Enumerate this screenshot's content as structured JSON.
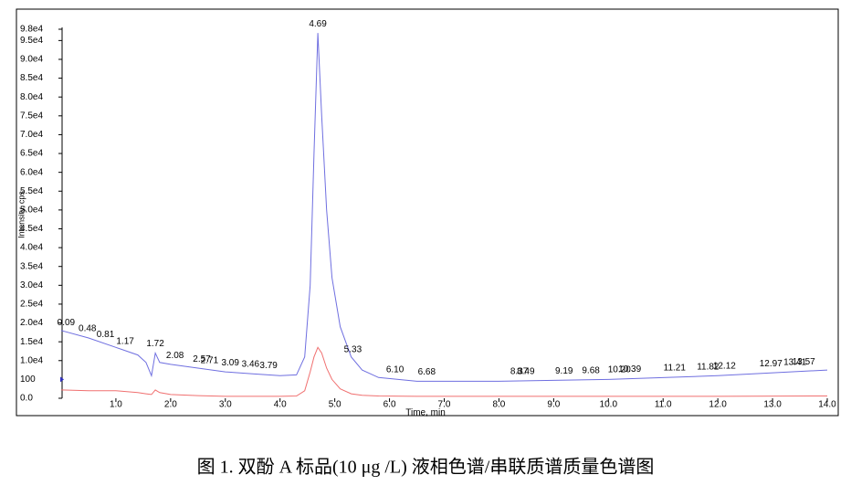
{
  "chart_data": {
    "type": "line",
    "caption": "图 1.  双酚 A 标品(10 μg /L)  液相色谱/串联质谱质量色谱图",
    "x_label": "Time, min",
    "y_label": "Intensity, cps",
    "reference_label": "100",
    "x": [
      0,
      0.5,
      1.0,
      1.4,
      1.55,
      1.65,
      1.72,
      1.8,
      2.0,
      2.5,
      3.0,
      3.5,
      4.0,
      4.3,
      4.45,
      4.55,
      4.62,
      4.69,
      4.76,
      4.85,
      4.95,
      5.1,
      5.3,
      5.5,
      5.8,
      6.5,
      8,
      10,
      12,
      14
    ],
    "series": [
      {
        "color": "#6f6fe0",
        "values": [
          18000,
          16000,
          13500,
          11500,
          9500,
          6000,
          12000,
          9500,
          9000,
          8000,
          7000,
          6500,
          6000,
          6200,
          11000,
          30000,
          65000,
          97000,
          75000,
          50000,
          32000,
          19000,
          11000,
          7500,
          5500,
          4500,
          4500,
          5000,
          6000,
          7500
        ]
      },
      {
        "color": "#f07070",
        "values": [
          2200,
          2000,
          2000,
          1500,
          1200,
          1000,
          2200,
          1500,
          1000,
          700,
          500,
          500,
          500,
          600,
          2000,
          7000,
          11000,
          13500,
          12000,
          8000,
          5000,
          2500,
          1200,
          800,
          600,
          500,
          500,
          500,
          500,
          600
        ]
      }
    ],
    "peaks": [
      0.09,
      0.48,
      0.81,
      1.17,
      1.72,
      2.08,
      2.57,
      2.71,
      3.09,
      3.46,
      3.79,
      4.69,
      5.33,
      {
        "value": 6.1,
        "label": "6.10"
      },
      6.68,
      8.37,
      8.49,
      9.19,
      9.68,
      {
        "value": 10.2,
        "label": "10.20"
      },
      10.39,
      11.21,
      11.82,
      12.12,
      12.97,
      13.41,
      13.57
    ],
    "xlim": [
      0,
      14
    ],
    "xticks": [
      {
        "value": 1,
        "label": "1.0"
      },
      {
        "value": 2,
        "label": "2.0"
      },
      {
        "value": 3,
        "label": "3.0"
      },
      {
        "value": 4,
        "label": "4.0"
      },
      {
        "value": 5,
        "label": "5.0"
      },
      {
        "value": 6,
        "label": "6.0"
      },
      {
        "value": 7,
        "label": "7.0"
      },
      {
        "value": 8,
        "label": "8.0"
      },
      {
        "value": 9,
        "label": "9.0"
      },
      {
        "value": 10,
        "label": "10.0"
      },
      {
        "value": 11,
        "label": "11.0"
      },
      {
        "value": 12,
        "label": "12.0"
      },
      {
        "value": 13,
        "label": "13.0"
      },
      {
        "value": 14,
        "label": "14.0"
      }
    ],
    "ylim": [
      0,
      98000
    ],
    "yticks": [
      {
        "value": 0,
        "label": "0.0"
      },
      {
        "value": 10000,
        "label": "1.0e4"
      },
      {
        "value": 15000,
        "label": "1.5e4"
      },
      {
        "value": 20000,
        "label": "2.0e4"
      },
      {
        "value": 25000,
        "label": "2.5e4"
      },
      {
        "value": 30000,
        "label": "3.0e4"
      },
      {
        "value": 35000,
        "label": "3.5e4"
      },
      {
        "value": 40000,
        "label": "4.0e4"
      },
      {
        "value": 45000,
        "label": "4.5e4"
      },
      {
        "value": 50000,
        "label": "5.0e4"
      },
      {
        "value": 55000,
        "label": "5.5e4"
      },
      {
        "value": 60000,
        "label": "6.0e4"
      },
      {
        "value": 65000,
        "label": "6.5e4"
      },
      {
        "value": 70000,
        "label": "7.0e4"
      },
      {
        "value": 75000,
        "label": "7.5e4"
      },
      {
        "value": 80000,
        "label": "8.0e4"
      },
      {
        "value": 85000,
        "label": "8.5e4"
      },
      {
        "value": 90000,
        "label": "9.0e4"
      },
      {
        "value": 95000,
        "label": "9.5e4"
      },
      {
        "value": 98000,
        "label": "9.8e4"
      }
    ],
    "grid": false
  }
}
